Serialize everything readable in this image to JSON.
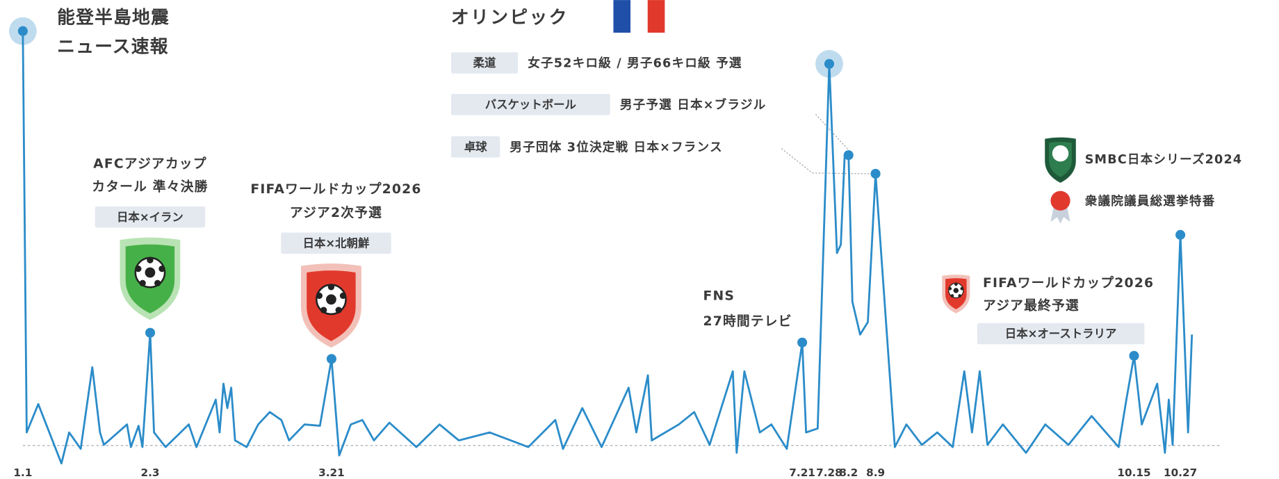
{
  "chart_data": {
    "type": "line",
    "color": "#2b8cc9",
    "x": [
      0,
      1,
      4,
      10,
      12,
      15,
      18,
      20,
      21,
      27,
      28,
      30,
      31,
      33,
      34,
      37,
      43,
      45,
      50,
      51,
      52,
      53,
      54,
      55,
      58,
      61,
      64,
      67,
      69,
      73,
      77,
      80,
      82,
      85,
      88,
      91,
      95,
      102,
      108,
      113,
      121,
      131,
      138,
      140,
      145,
      150,
      157,
      159,
      162,
      163,
      170,
      174,
      178,
      184,
      185,
      187,
      191,
      194,
      198,
      202,
      203,
      206,
      209,
      211,
      212,
      213,
      214,
      215,
      217,
      219,
      221,
      226,
      229,
      233,
      237,
      241,
      244,
      246,
      248,
      250,
      254,
      260,
      265,
      271,
      277,
      284,
      286,
      288,
      290,
      294,
      296,
      297,
      298,
      300,
      302,
      303
    ],
    "values": [
      97.6,
      7.0,
      13.4,
      0,
      7.0,
      3.3,
      21.7,
      7.0,
      4.2,
      8.8,
      3.7,
      8.5,
      3.7,
      29.5,
      7.0,
      3.7,
      8.8,
      3.7,
      14.4,
      7.0,
      18.0,
      12.5,
      17.1,
      5.2,
      3.7,
      8.8,
      11.6,
      9.8,
      5.2,
      8.8,
      8.5,
      23.6,
      1.8,
      8.8,
      9.8,
      5.2,
      9.2,
      3.7,
      8.8,
      5.2,
      7.0,
      3.7,
      9.8,
      3.3,
      12.5,
      3.7,
      17.1,
      7.0,
      19.9,
      5.2,
      8.8,
      11.6,
      4.2,
      20.8,
      2.4,
      20.8,
      7.0,
      8.8,
      3.3,
      27.3,
      7.0,
      7.9,
      90.2,
      47.5,
      49.4,
      69.6,
      69.6,
      36.5,
      29.1,
      31.9,
      65.4,
      3.7,
      8.8,
      4.2,
      7.0,
      3.7,
      20.8,
      7.0,
      20.8,
      4.2,
      8.8,
      2.4,
      8.8,
      4.2,
      10.7,
      3.7,
      14.4,
      24.3,
      8.8,
      18.0,
      2.4,
      14.4,
      4.2,
      51.6,
      7.0,
      29.1
    ],
    "xlim": [
      0,
      304
    ],
    "ylim": [
      0,
      100
    ],
    "xticks": [
      {
        "value": 0,
        "label": "1.1"
      },
      {
        "value": 33,
        "label": "2.3"
      },
      {
        "value": 80,
        "label": "3.21"
      },
      {
        "value": 202,
        "label": "7.21"
      },
      {
        "value": 209,
        "label": "7.28"
      },
      {
        "value": 214,
        "label": "8.2"
      },
      {
        "value": 221,
        "label": "8.9"
      },
      {
        "value": 288,
        "label": "10.15"
      },
      {
        "value": 300,
        "label": "10.27"
      }
    ],
    "annotations": [
      {
        "text": [
          "能登半島地震",
          "ニュース速報"
        ]
      },
      {
        "text": [
          "AFCアジアカップ",
          "カタール 準々決勝"
        ],
        "tag": "日本×イラン"
      },
      {
        "text": [
          "FIFAワールドカップ2026",
          "アジア2次予選"
        ],
        "tag": "日本×北朝鮮"
      },
      {
        "text": [
          "FNS",
          "27時間テレビ"
        ]
      },
      {
        "text": [
          "FIFAワールドカップ2026",
          "アジア最終予選"
        ],
        "tag": "日本×オーストラリア"
      }
    ],
    "olympics": {
      "title": "オリンピック",
      "items": [
        {
          "tag": "柔道",
          "text": "女子52キロ級 / 男子66キロ級 予選"
        },
        {
          "tag": "バスケットボール",
          "text": "男子予選 日本×ブラジル"
        },
        {
          "tag": "卓球",
          "text": "男子団体 3位決定戦 日本×フランス"
        }
      ]
    },
    "legend": [
      "SMBC日本シリーズ2024",
      "衆議院議員総選挙特番"
    ]
  }
}
